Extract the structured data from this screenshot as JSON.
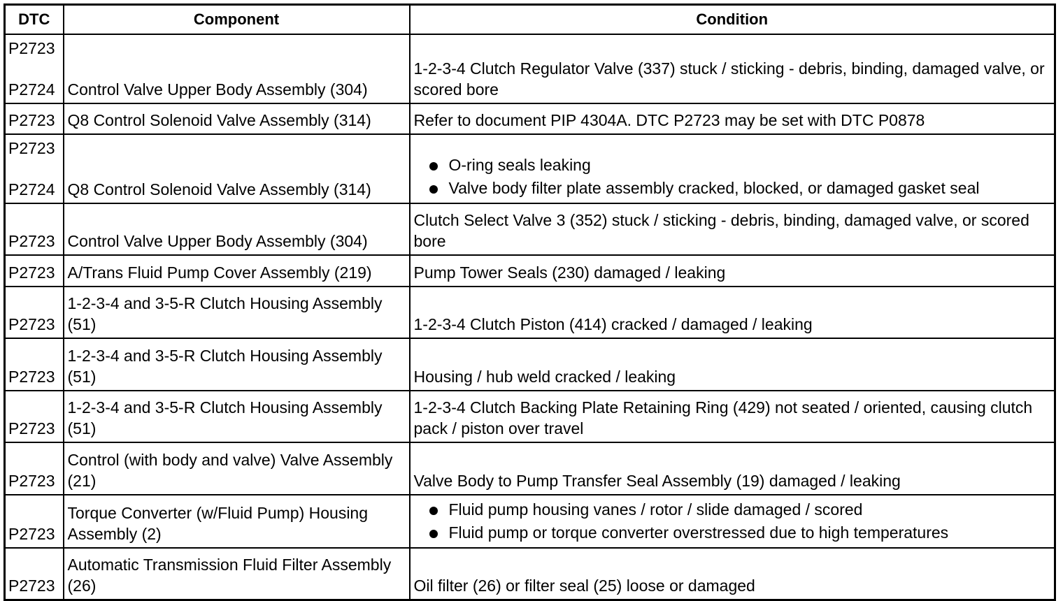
{
  "headers": {
    "dtc": "DTC",
    "component": "Component",
    "condition": "Condition"
  },
  "rows": [
    {
      "dtc": [
        "P2723",
        "P2724"
      ],
      "component": "Control Valve Upper Body Assembly (304)",
      "condition": "1-2-3-4 Clutch Regulator Valve (337) stuck / sticking - debris, binding, damaged valve, or scored bore"
    },
    {
      "dtc": [
        "P2723"
      ],
      "component": "Q8 Control Solenoid Valve Assembly (314)",
      "condition": "Refer to document PIP 4304A. DTC P2723 may be set with DTC P0878"
    },
    {
      "dtc": [
        "P2723",
        "P2724"
      ],
      "component": "Q8 Control Solenoid Valve Assembly (314)",
      "bullets": [
        "O-ring seals leaking",
        "Valve body filter plate assembly cracked, blocked, or damaged gasket seal"
      ]
    },
    {
      "dtc": [
        "P2723"
      ],
      "component": "Control Valve Upper Body Assembly (304)",
      "condition": "Clutch Select Valve 3 (352) stuck / sticking - debris, binding, damaged valve, or scored bore"
    },
    {
      "dtc": [
        "P2723"
      ],
      "component": "A/Trans Fluid Pump Cover Assembly (219)",
      "condition": "Pump Tower Seals (230) damaged / leaking"
    },
    {
      "dtc": [
        "P2723"
      ],
      "component": "1-2-3-4 and 3-5-R Clutch Housing Assembly (51)",
      "condition": "1-2-3-4 Clutch Piston (414) cracked / damaged / leaking"
    },
    {
      "dtc": [
        "P2723"
      ],
      "component": "1-2-3-4 and 3-5-R Clutch Housing Assembly (51)",
      "condition": "Housing / hub weld cracked / leaking"
    },
    {
      "dtc": [
        "P2723"
      ],
      "component": "1-2-3-4 and 3-5-R Clutch Housing Assembly (51)",
      "condition": "1-2-3-4 Clutch Backing Plate Retaining Ring (429) not seated / oriented, causing clutch pack / piston over travel"
    },
    {
      "dtc": [
        "P2723"
      ],
      "component": "Control (with body and valve) Valve Assembly (21)",
      "condition": "Valve Body to Pump Transfer Seal Assembly (19) damaged / leaking"
    },
    {
      "dtc": [
        "P2723"
      ],
      "component": "Torque Converter (w/Fluid Pump) Housing Assembly (2)",
      "bullets": [
        "Fluid pump housing vanes / rotor / slide damaged / scored",
        "Fluid pump or torque converter overstressed due to high temperatures"
      ]
    },
    {
      "dtc": [
        "P2723"
      ],
      "component": "Automatic Transmission Fluid Filter Assembly (26)",
      "condition": "Oil filter (26) or filter seal (25) loose or damaged"
    }
  ]
}
